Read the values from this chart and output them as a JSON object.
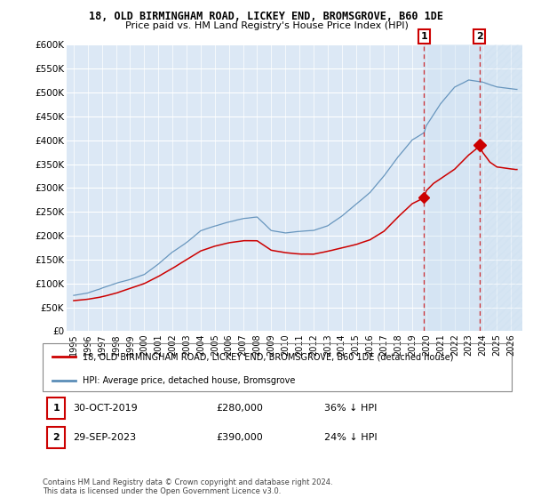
{
  "title": "18, OLD BIRMINGHAM ROAD, LICKEY END, BROMSGROVE, B60 1DE",
  "subtitle": "Price paid vs. HM Land Registry's House Price Index (HPI)",
  "ylim": [
    0,
    600000
  ],
  "yticks": [
    0,
    50000,
    100000,
    150000,
    200000,
    250000,
    300000,
    350000,
    400000,
    450000,
    500000,
    550000,
    600000
  ],
  "ytick_labels": [
    "£0",
    "£50K",
    "£100K",
    "£150K",
    "£200K",
    "£250K",
    "£300K",
    "£350K",
    "£400K",
    "£450K",
    "£500K",
    "£550K",
    "£600K"
  ],
  "hpi_color": "#5b8db8",
  "price_color": "#cc0000",
  "t1_x": 2019.833,
  "t1_price": 280000,
  "t2_x": 2023.75,
  "t2_price": 390000,
  "legend_house_label": "18, OLD BIRMINGHAM ROAD, LICKEY END, BROMSGROVE, B60 1DE (detached house)",
  "legend_hpi_label": "HPI: Average price, detached house, Bromsgrove",
  "ann1_num": "1",
  "ann1_date": "30-OCT-2019",
  "ann1_price": "£280,000",
  "ann1_hpi": "36% ↓ HPI",
  "ann2_num": "2",
  "ann2_date": "29-SEP-2023",
  "ann2_price": "£390,000",
  "ann2_hpi": "24% ↓ HPI",
  "footer": "Contains HM Land Registry data © Crown copyright and database right 2024.\nThis data is licensed under the Open Government Licence v3.0.",
  "bg_color": "#dce8f5",
  "shade_color": "#c8dff0",
  "grid_color": "#ffffff",
  "xlim_left": 1994.5,
  "xlim_right": 2026.8
}
